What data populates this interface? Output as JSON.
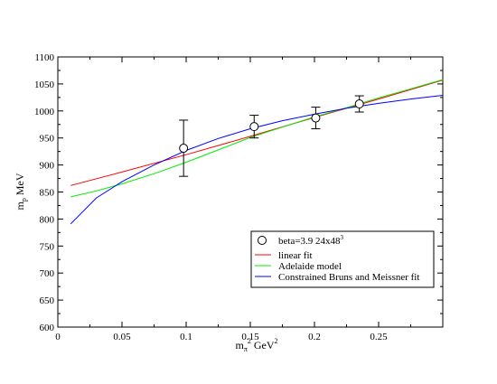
{
  "chart_data": {
    "type": "line",
    "xlabel": {
      "base": "m",
      "sub": "π",
      "sup": "2",
      "unit": "GeV",
      "unit_sup": "2"
    },
    "ylabel": {
      "base": "m",
      "sub": "p",
      "unit": "MeV"
    },
    "xlim": [
      0,
      0.3
    ],
    "ylim": [
      600,
      1100
    ],
    "x_ticks": [
      0,
      0.05,
      0.1,
      0.15,
      0.2,
      0.25
    ],
    "x_tick_labels": [
      "0",
      "0.05",
      "0.1",
      "0.15",
      "0.2",
      "0.25"
    ],
    "y_ticks": [
      600,
      650,
      700,
      750,
      800,
      850,
      900,
      950,
      1000,
      1050,
      1100
    ],
    "y_tick_labels": [
      "600",
      "650",
      "700",
      "750",
      "800",
      "850",
      "900",
      "950",
      "1000",
      "1050",
      "1100"
    ],
    "grid": false,
    "legend_position": "lower-right",
    "points": {
      "name": "beta=3.9 24x48",
      "name_sup": "3",
      "marker": "open-circle",
      "color": "#000000",
      "x": [
        0.098,
        0.153,
        0.201,
        0.235
      ],
      "y": [
        931,
        971,
        987,
        1013
      ],
      "err": [
        52,
        21,
        20,
        15
      ]
    },
    "series": [
      {
        "name": "linear fit",
        "color": "#ff0000",
        "x": [
          0.01,
          0.05,
          0.1,
          0.15,
          0.2,
          0.25,
          0.3
        ],
        "y": [
          862,
          887,
          919,
          953,
          988,
          1022,
          1057
        ]
      },
      {
        "name": "Adelaide model",
        "color": "#00ee00",
        "x": [
          0.01,
          0.03,
          0.05,
          0.075,
          0.1,
          0.125,
          0.15,
          0.175,
          0.2,
          0.225,
          0.25,
          0.275,
          0.3
        ],
        "y": [
          841,
          852,
          865,
          884,
          905,
          928,
          951,
          970,
          989,
          1006,
          1024,
          1041,
          1058
        ]
      },
      {
        "name": "Constrained Bruns and Meissner fit",
        "color": "#0000ff",
        "x": [
          0.01,
          0.03,
          0.05,
          0.075,
          0.1,
          0.125,
          0.15,
          0.175,
          0.2,
          0.225,
          0.25,
          0.275,
          0.3
        ],
        "y": [
          791,
          839,
          869,
          900,
          927,
          949,
          967,
          982,
          994,
          1005,
          1014,
          1022,
          1029
        ]
      }
    ]
  }
}
